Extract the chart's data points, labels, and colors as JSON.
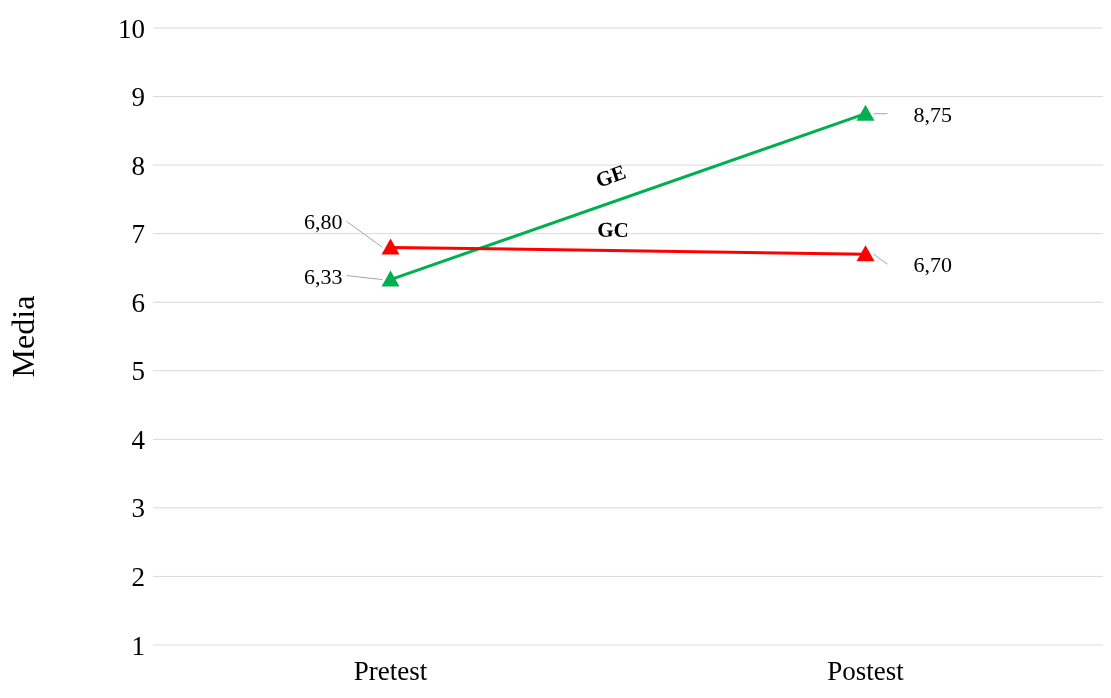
{
  "chart_data": {
    "type": "line",
    "ylabel": "Media",
    "categories": [
      "Pretest",
      "Postest"
    ],
    "series": [
      {
        "name": "GE",
        "color": "#00b050",
        "values": [
          6.33,
          8.75
        ],
        "value_labels": [
          "6,33",
          "8,75"
        ]
      },
      {
        "name": "GC",
        "color": "#ff0000",
        "values": [
          6.8,
          6.7
        ],
        "value_labels": [
          "6,80",
          "6,70"
        ]
      }
    ],
    "ylim": [
      1,
      10
    ],
    "yticks": [
      1,
      2,
      3,
      4,
      5,
      6,
      7,
      8,
      9,
      10
    ],
    "grid": "y",
    "legend": false,
    "marker": "triangle",
    "line_style": "solid"
  }
}
